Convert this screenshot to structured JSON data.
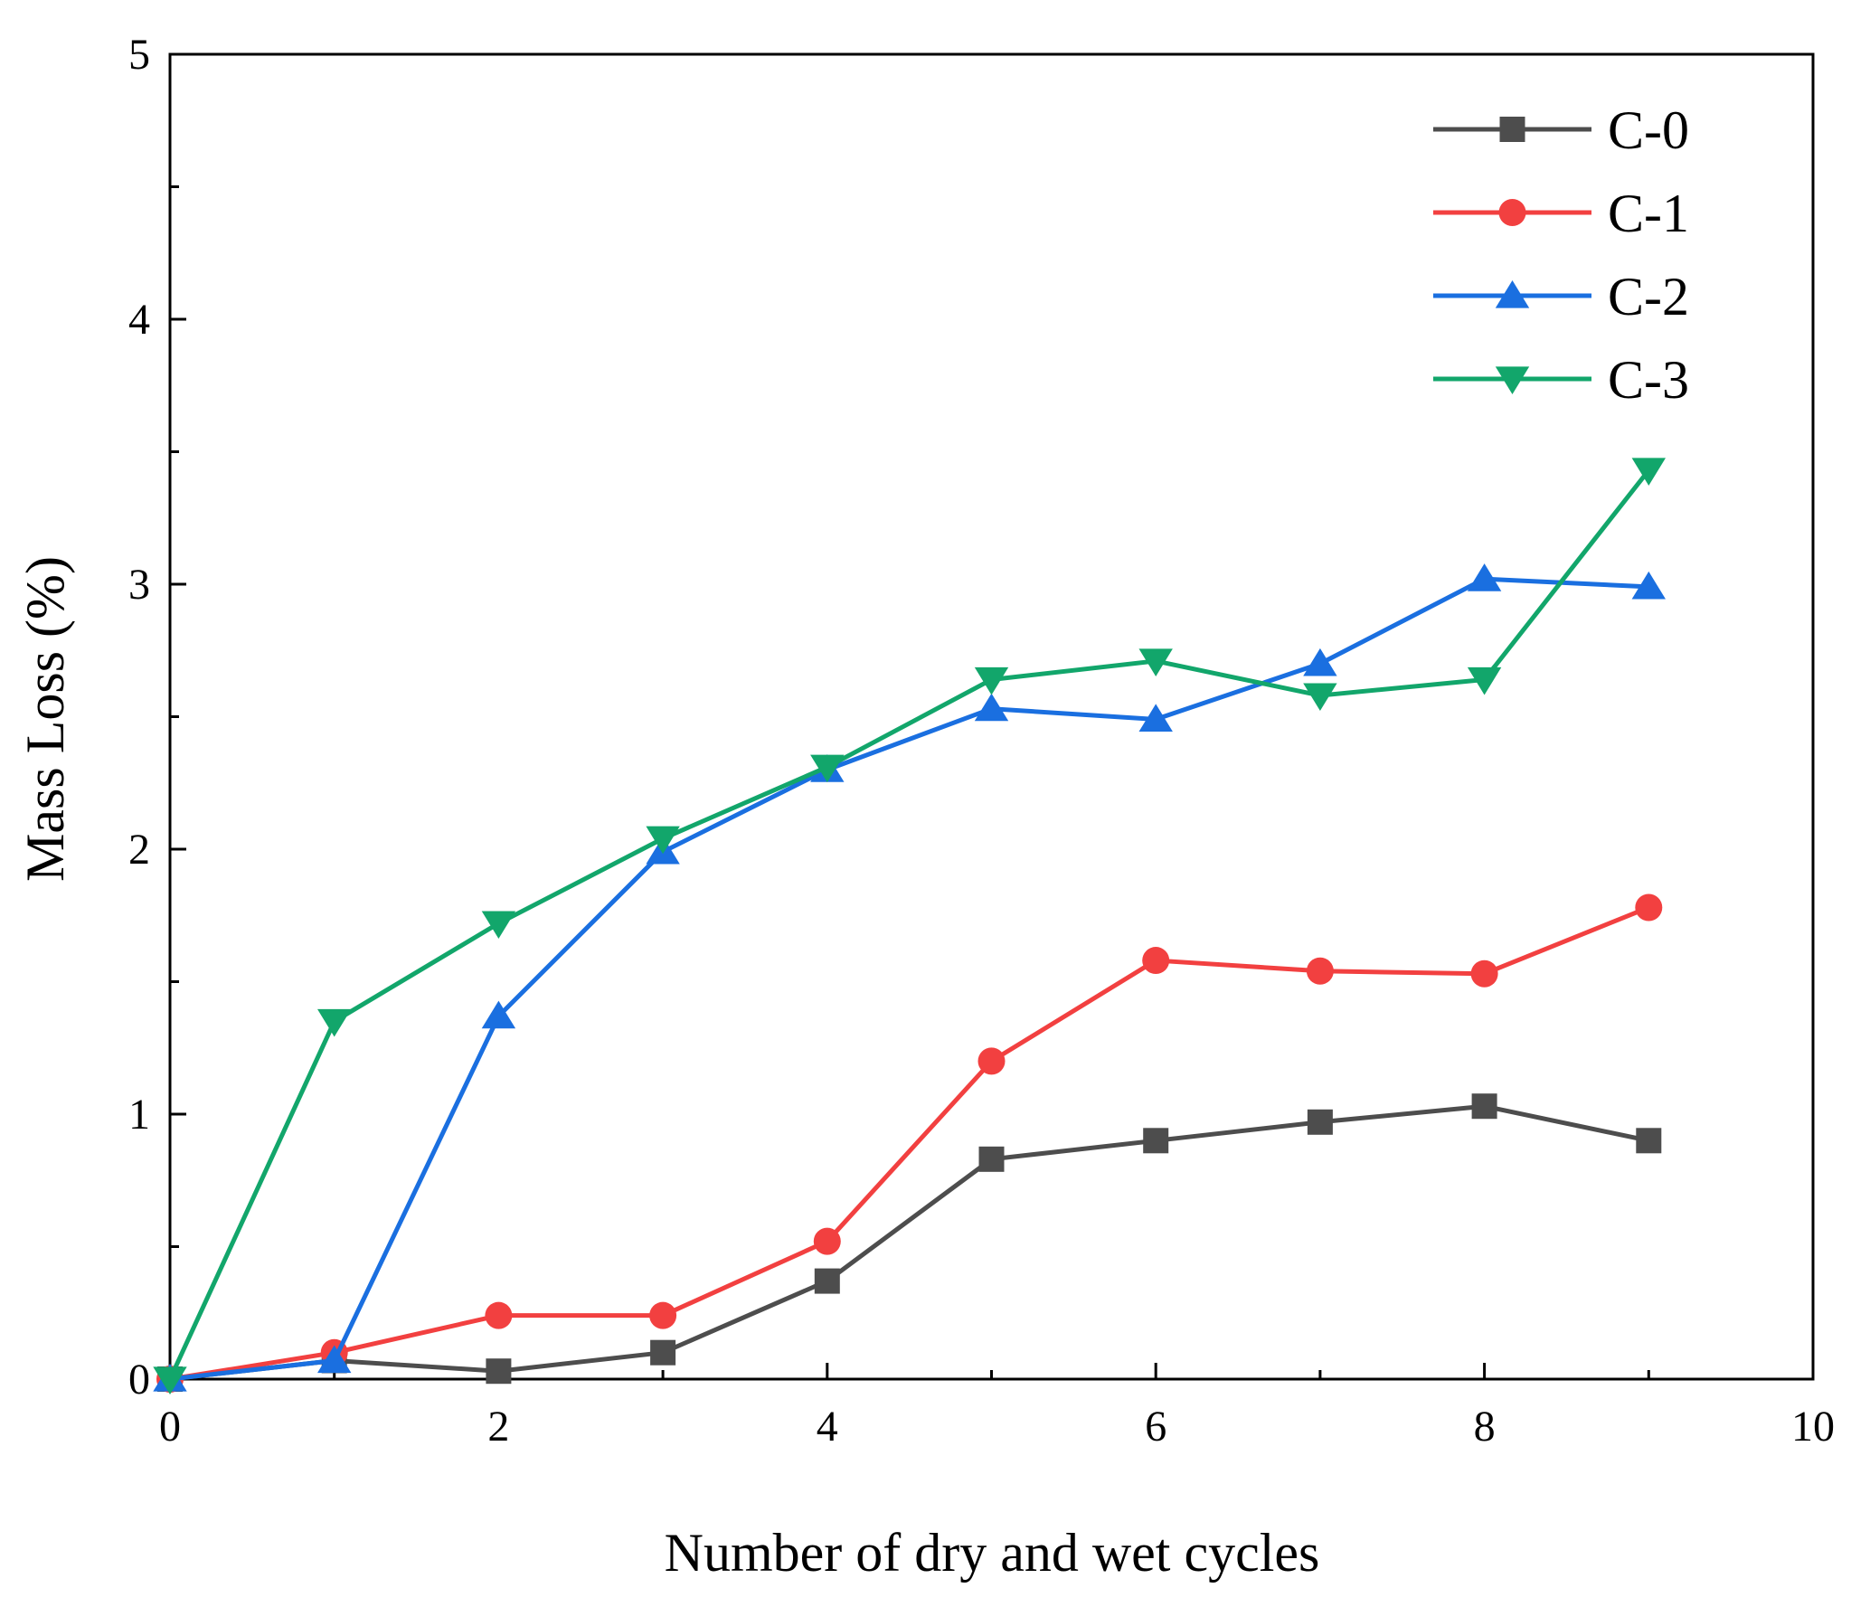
{
  "chart_data": {
    "type": "line",
    "title": "",
    "xlabel": "Number of dry and wet cycles",
    "ylabel": "Mass Loss (%)",
    "xlim": [
      0,
      10
    ],
    "ylim": [
      0,
      5
    ],
    "xticks": [
      0,
      2,
      4,
      6,
      8,
      10
    ],
    "yticks": [
      0,
      1,
      2,
      3,
      4,
      5
    ],
    "grid": false,
    "legend_position": "top-right",
    "x": [
      0,
      1,
      2,
      3,
      4,
      5,
      6,
      7,
      8,
      9
    ],
    "series": [
      {
        "name": "C-0",
        "color": "#4d4d4d",
        "marker": "square",
        "values": [
          0,
          0.07,
          0.03,
          0.1,
          0.37,
          0.83,
          0.9,
          0.97,
          1.03,
          0.9
        ]
      },
      {
        "name": "C-1",
        "color": "#f24040",
        "marker": "circle",
        "values": [
          0,
          0.1,
          0.24,
          0.24,
          0.52,
          1.2,
          1.58,
          1.54,
          1.53,
          1.78
        ]
      },
      {
        "name": "C-2",
        "color": "#1a6fe0",
        "marker": "triangle-up",
        "values": [
          0,
          0.07,
          1.37,
          1.99,
          2.3,
          2.53,
          2.49,
          2.7,
          3.02,
          2.99
        ]
      },
      {
        "name": "C-3",
        "color": "#12a66b",
        "marker": "triangle-down",
        "values": [
          0,
          1.35,
          1.72,
          2.04,
          2.31,
          2.64,
          2.71,
          2.58,
          2.64,
          3.43
        ]
      }
    ]
  }
}
